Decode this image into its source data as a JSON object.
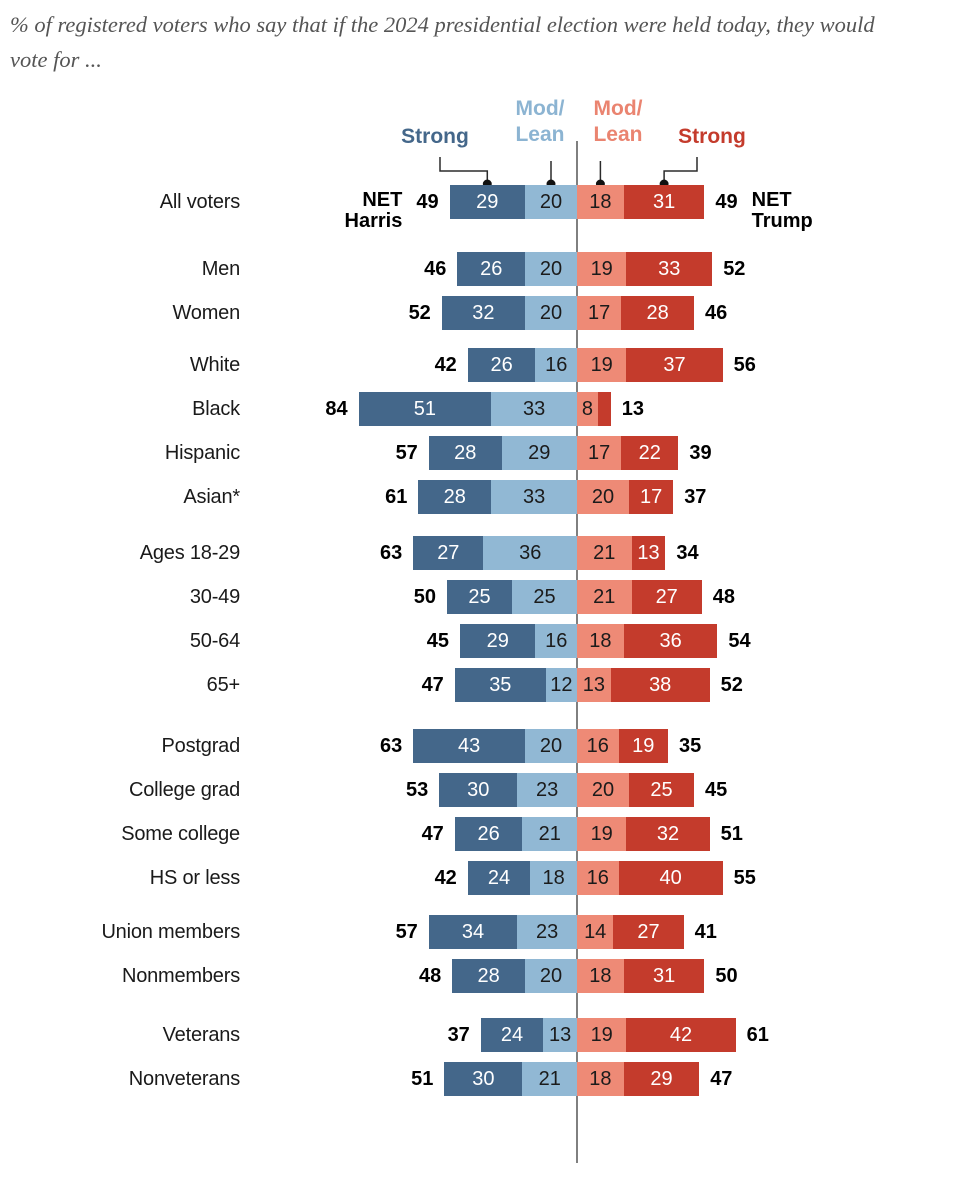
{
  "title": "% of registered voters who say that if the 2024 presidential election were held today, they would vote for ...",
  "legend": {
    "harris_strong": "Strong",
    "harris_lean": "Mod/\nLean",
    "trump_lean": "Mod/\nLean",
    "trump_strong": "Strong"
  },
  "net_harris_label": {
    "line1": "NET",
    "line2": "Harris"
  },
  "net_trump_label": {
    "line1": "NET",
    "line2": "Trump"
  },
  "colors": {
    "strong_harris": "#44678a",
    "lean_harris": "#91b8d4",
    "lean_trump": "#ee8a76",
    "strong_trump": "#c43b2c",
    "label_on_dark": "#ffffff",
    "label_on_light": "#1b1b1b",
    "legend_strong_harris": "#44678a",
    "legend_lean_harris": "#8cb4d2",
    "legend_lean_trump": "#ea8470",
    "legend_strong_trump": "#c43b2c",
    "axis_line": "#2b2b2b"
  },
  "chart_data": {
    "type": "bar",
    "variant": "diverging-stacked-horizontal",
    "series_order": [
      "strong_harris",
      "lean_harris",
      "lean_trump",
      "strong_trump"
    ],
    "legend_entries": [
      "Strong",
      "Mod/Lean",
      "Mod/Lean",
      "Strong"
    ],
    "axis": {
      "center_value": 0,
      "units": "percent"
    },
    "min_inline_label": 8,
    "groups": [
      [
        {
          "label": "All voters",
          "net_harris": 49,
          "strong_harris": 29,
          "lean_harris": 20,
          "lean_trump": 18,
          "strong_trump": 31,
          "net_trump": 49,
          "show_net_tags": true
        }
      ],
      [
        {
          "label": "Men",
          "net_harris": 46,
          "strong_harris": 26,
          "lean_harris": 20,
          "lean_trump": 19,
          "strong_trump": 33,
          "net_trump": 52
        },
        {
          "label": "Women",
          "net_harris": 52,
          "strong_harris": 32,
          "lean_harris": 20,
          "lean_trump": 17,
          "strong_trump": 28,
          "net_trump": 46
        }
      ],
      [
        {
          "label": "White",
          "net_harris": 42,
          "strong_harris": 26,
          "lean_harris": 16,
          "lean_trump": 19,
          "strong_trump": 37,
          "net_trump": 56
        },
        {
          "label": "Black",
          "net_harris": 84,
          "strong_harris": 51,
          "lean_harris": 33,
          "lean_trump": 8,
          "strong_trump": 5,
          "net_trump": 13
        },
        {
          "label": "Hispanic",
          "net_harris": 57,
          "strong_harris": 28,
          "lean_harris": 29,
          "lean_trump": 17,
          "strong_trump": 22,
          "net_trump": 39
        },
        {
          "label": "Asian*",
          "net_harris": 61,
          "strong_harris": 28,
          "lean_harris": 33,
          "lean_trump": 20,
          "strong_trump": 17,
          "net_trump": 37
        }
      ],
      [
        {
          "label": "Ages 18-29",
          "net_harris": 63,
          "strong_harris": 27,
          "lean_harris": 36,
          "lean_trump": 21,
          "strong_trump": 13,
          "net_trump": 34
        },
        {
          "label": "30-49",
          "net_harris": 50,
          "strong_harris": 25,
          "lean_harris": 25,
          "lean_trump": 21,
          "strong_trump": 27,
          "net_trump": 48
        },
        {
          "label": "50-64",
          "net_harris": 45,
          "strong_harris": 29,
          "lean_harris": 16,
          "lean_trump": 18,
          "strong_trump": 36,
          "net_trump": 54
        },
        {
          "label": "65+",
          "net_harris": 47,
          "strong_harris": 35,
          "lean_harris": 12,
          "lean_trump": 13,
          "strong_trump": 38,
          "net_trump": 52
        }
      ],
      [
        {
          "label": "Postgrad",
          "net_harris": 63,
          "strong_harris": 43,
          "lean_harris": 20,
          "lean_trump": 16,
          "strong_trump": 19,
          "net_trump": 35
        },
        {
          "label": "College grad",
          "net_harris": 53,
          "strong_harris": 30,
          "lean_harris": 23,
          "lean_trump": 20,
          "strong_trump": 25,
          "net_trump": 45
        },
        {
          "label": "Some college",
          "net_harris": 47,
          "strong_harris": 26,
          "lean_harris": 21,
          "lean_trump": 19,
          "strong_trump": 32,
          "net_trump": 51
        },
        {
          "label": "HS or less",
          "net_harris": 42,
          "strong_harris": 24,
          "lean_harris": 18,
          "lean_trump": 16,
          "strong_trump": 40,
          "net_trump": 55
        }
      ],
      [
        {
          "label": "Union members",
          "net_harris": 57,
          "strong_harris": 34,
          "lean_harris": 23,
          "lean_trump": 14,
          "strong_trump": 27,
          "net_trump": 41
        },
        {
          "label": "Nonmembers",
          "net_harris": 48,
          "strong_harris": 28,
          "lean_harris": 20,
          "lean_trump": 18,
          "strong_trump": 31,
          "net_trump": 50
        }
      ],
      [
        {
          "label": "Veterans",
          "net_harris": 37,
          "strong_harris": 24,
          "lean_harris": 13,
          "lean_trump": 19,
          "strong_trump": 42,
          "net_trump": 61
        },
        {
          "label": "Nonveterans",
          "net_harris": 51,
          "strong_harris": 30,
          "lean_harris": 21,
          "lean_trump": 18,
          "strong_trump": 29,
          "net_trump": 47
        }
      ]
    ]
  }
}
